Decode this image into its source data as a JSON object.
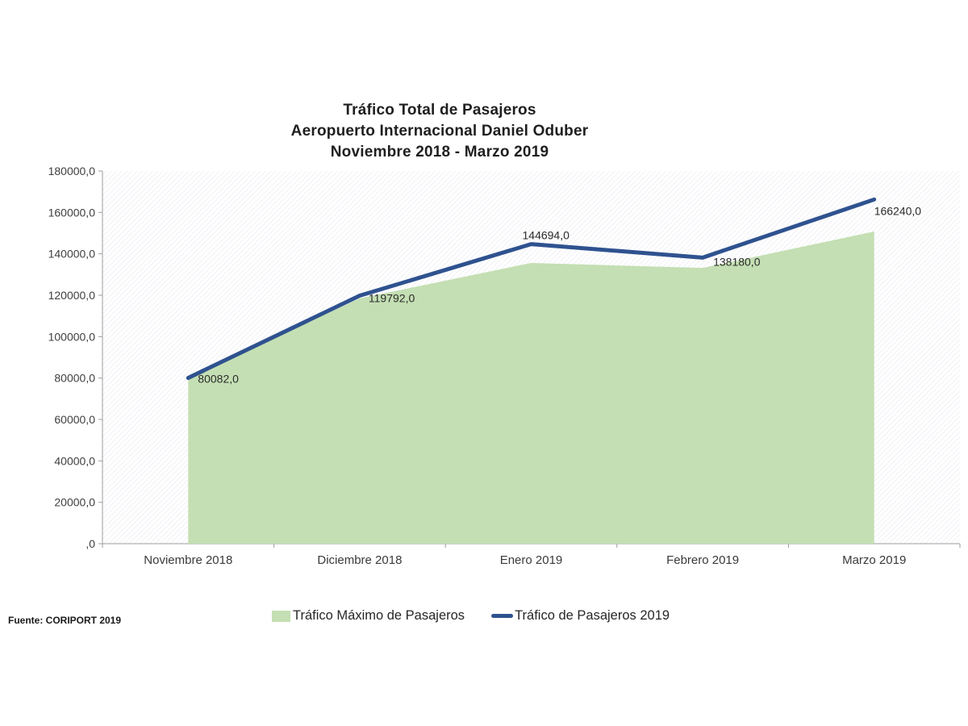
{
  "title": {
    "line1": "Tráfico Total de Pasajeros",
    "line2": "Aeropuerto Internacional Daniel Oduber",
    "line3": "Noviembre 2018 - Marzo 2019"
  },
  "source_note": "Fuente: CORIPORT 2019",
  "legend": {
    "area_label": "Tráfico Máximo de Pasajeros",
    "line_label": "Tráfico de Pasajeros 2019"
  },
  "colors": {
    "area_fill": "#c4dfb3",
    "line_stroke": "#2f528f",
    "axis": "#9d9d9d",
    "hatch": "#e9e9f0"
  },
  "chart_data": {
    "type": "line",
    "title": "Tráfico Total de Pasajeros - Aeropuerto Internacional Daniel Oduber - Noviembre 2018 - Marzo 2019",
    "categories": [
      "Noviembre 2018",
      "Diciembre 2018",
      "Enero 2019",
      "Febrero 2019",
      "Marzo 2019"
    ],
    "series": [
      {
        "name": "Tráfico Máximo de Pasajeros",
        "type": "area",
        "color": "#c4dfb3",
        "values": [
          80000,
          118500,
          135600,
          133200,
          150800
        ]
      },
      {
        "name": "Tráfico de Pasajeros 2019",
        "type": "line",
        "color": "#2f528f",
        "values": [
          80082,
          119792,
          144694,
          138180,
          166240
        ],
        "data_labels": [
          "80082,0",
          "119792,0",
          "144694,0",
          "138180,0",
          "166240,0"
        ]
      }
    ],
    "xlabel": "",
    "ylabel": "",
    "ylim": [
      0,
      180000
    ],
    "ytick_step": 20000,
    "ytick_labels": [
      "180000,0",
      "160000,0",
      "140000,0",
      "120000,0",
      "100000,0",
      "80000,0",
      "60000,0",
      "40000,0",
      "20000,0",
      ",0"
    ],
    "grid": false,
    "plot_background": "diagonal-hatch",
    "legend_position": "bottom"
  }
}
